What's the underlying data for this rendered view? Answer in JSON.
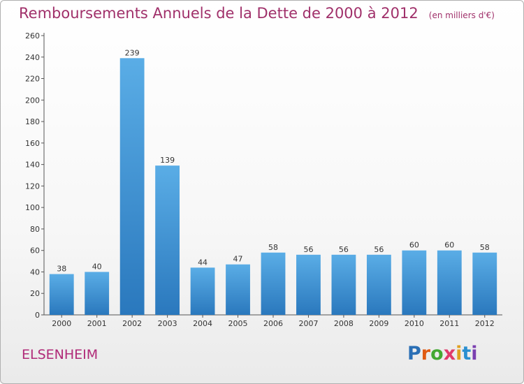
{
  "title": "Remboursements Annuels de la Dette de 2000 à 2012",
  "subtitle": "(en milliers d'€)",
  "commune": "ELSENHEIM",
  "logo": {
    "letters": [
      "P",
      "r",
      "o",
      "x",
      "i",
      "t",
      "i"
    ],
    "colors": [
      "#2a6fb5",
      "#e05a12",
      "#44a832",
      "#e03a6a",
      "#e0a020",
      "#2a8fd0",
      "#7a3fb0"
    ]
  },
  "colors": {
    "title": "#a0306a",
    "bar_light": "#5aade6",
    "bar_dark": "#2a78bd",
    "axis": "#555555",
    "grid": "#dddddd"
  },
  "chart_data": {
    "type": "bar",
    "categories": [
      "2000",
      "2001",
      "2002",
      "2003",
      "2004",
      "2005",
      "2006",
      "2007",
      "2008",
      "2009",
      "2010",
      "2011",
      "2012"
    ],
    "values": [
      38,
      40,
      239,
      139,
      44,
      47,
      58,
      56,
      56,
      56,
      60,
      60,
      58
    ],
    "ylim": [
      0,
      260
    ],
    "yticks": [
      0,
      20,
      40,
      60,
      80,
      100,
      120,
      140,
      160,
      180,
      200,
      220,
      240,
      260
    ],
    "data_labels": true,
    "grid": false
  }
}
